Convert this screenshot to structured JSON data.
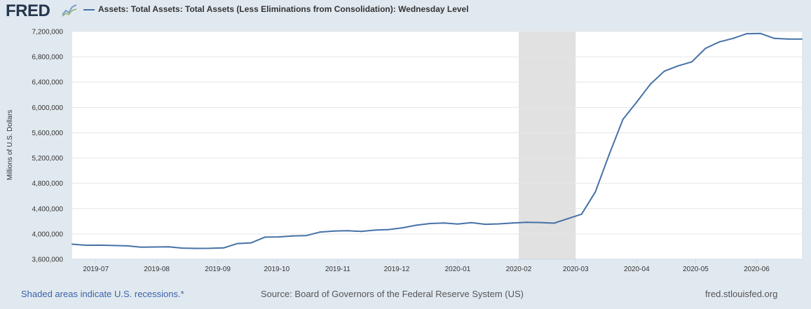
{
  "header": {
    "logo_text": "FRED",
    "logo_icon": "trend-chart-icon",
    "series_title": "Assets: Total Assets: Total Assets (Less Eliminations from Consolidation): Wednesday Level"
  },
  "footer": {
    "recession_note": "Shaded areas indicate U.S. recessions.*",
    "source": "Source: Board of Governors of the Federal Reserve System (US)",
    "site": "fred.stlouisfed.org"
  },
  "colors": {
    "line": "#4572a7",
    "recession": "#e1e1e1",
    "plot_bg": "#ffffff",
    "page_bg": "#e1e9f0",
    "grid": "#e6e6e6"
  },
  "chart_data": {
    "type": "line",
    "title": "",
    "xlabel": "",
    "ylabel": "Millions of U.S. Dollars",
    "ylim": [
      3600000,
      7200000
    ],
    "yticks": [
      3600000,
      4000000,
      4400000,
      4800000,
      5200000,
      5600000,
      6000000,
      6400000,
      6800000,
      7200000
    ],
    "ytick_labels": [
      "3,600,000",
      "4,000,000",
      "4,400,000",
      "4,800,000",
      "5,200,000",
      "5,600,000",
      "6,000,000",
      "6,400,000",
      "6,800,000",
      "7,200,000"
    ],
    "xlim": [
      "2019-06-19",
      "2020-06-24"
    ],
    "xticks": [
      "2019-07-01",
      "2019-08-01",
      "2019-09-01",
      "2019-10-01",
      "2019-11-01",
      "2019-12-01",
      "2020-01-01",
      "2020-02-01",
      "2020-03-01",
      "2020-04-01",
      "2020-05-01",
      "2020-06-01"
    ],
    "xtick_labels": [
      "2019-07",
      "2019-08",
      "2019-09",
      "2019-10",
      "2019-11",
      "2019-12",
      "2020-01",
      "2020-02",
      "2020-03",
      "2020-04",
      "2020-05",
      "2020-06"
    ],
    "grid": true,
    "recessions": [
      [
        "2020-02-01",
        "2020-03-01"
      ]
    ],
    "series": [
      {
        "name": "Assets: Total Assets: Total Assets (Less Eliminations from Consolidation): Wednesday Level",
        "x": [
          "2019-06-19",
          "2019-06-26",
          "2019-07-03",
          "2019-07-10",
          "2019-07-17",
          "2019-07-24",
          "2019-07-31",
          "2019-08-07",
          "2019-08-14",
          "2019-08-21",
          "2019-08-28",
          "2019-09-04",
          "2019-09-11",
          "2019-09-18",
          "2019-09-25",
          "2019-10-02",
          "2019-10-09",
          "2019-10-16",
          "2019-10-23",
          "2019-10-30",
          "2019-11-06",
          "2019-11-13",
          "2019-11-20",
          "2019-11-27",
          "2019-12-04",
          "2019-12-11",
          "2019-12-18",
          "2019-12-25",
          "2020-01-01",
          "2020-01-08",
          "2020-01-15",
          "2020-01-22",
          "2020-01-29",
          "2020-02-05",
          "2020-02-12",
          "2020-02-19",
          "2020-02-26",
          "2020-03-04",
          "2020-03-11",
          "2020-03-18",
          "2020-03-25",
          "2020-04-01",
          "2020-04-08",
          "2020-04-15",
          "2020-04-22",
          "2020-04-29",
          "2020-05-06",
          "2020-05-13",
          "2020-05-20",
          "2020-05-27",
          "2020-06-03",
          "2020-06-10",
          "2020-06-17",
          "2020-06-24"
        ],
        "y": [
          3838000,
          3822000,
          3823000,
          3817000,
          3812000,
          3791000,
          3794000,
          3796000,
          3776000,
          3772000,
          3773000,
          3779000,
          3848000,
          3859000,
          3950000,
          3953000,
          3969000,
          3974000,
          4030000,
          4045000,
          4051000,
          4040000,
          4061000,
          4070000,
          4097000,
          4138000,
          4165000,
          4173000,
          4156000,
          4178000,
          4153000,
          4159000,
          4173000,
          4185000,
          4180000,
          4170000,
          4241000,
          4312000,
          4666000,
          5254000,
          5811000,
          6083000,
          6368000,
          6572000,
          6656000,
          6720000,
          6934000,
          7036000,
          7092000,
          7166000,
          7169000,
          7092000,
          7082000,
          7082000
        ]
      }
    ]
  }
}
